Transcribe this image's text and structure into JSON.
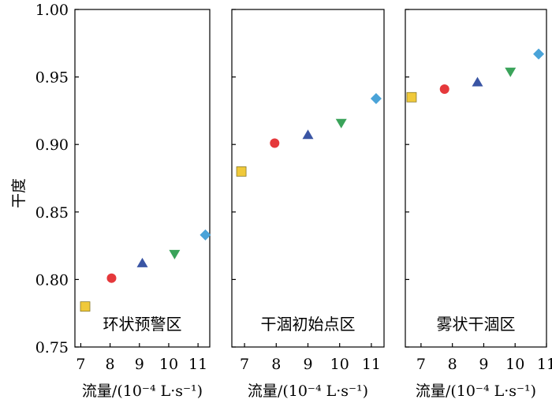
{
  "chart_data": {
    "type": "scatter",
    "ylabel": "干度",
    "ylim": [
      0.75,
      1.0
    ],
    "yticks": [
      "0.75",
      "0.80",
      "0.85",
      "0.90",
      "0.95",
      "1.00"
    ],
    "marker_colors": [
      "#f0c93a",
      "#e5383b",
      "#3a55a4",
      "#3aa35a",
      "#4aa3d8"
    ],
    "marker_shapes": [
      "square",
      "circle",
      "triangle-up",
      "triangle-down",
      "diamond"
    ],
    "panels": [
      {
        "label": "环状预警区",
        "xlabel": "流量/(10⁻⁴ L·s⁻¹)",
        "xlim": [
          6.8,
          11.4
        ],
        "xticks": [
          "7",
          "8",
          "9",
          "10",
          "11"
        ],
        "x": [
          7.15,
          8.05,
          9.1,
          10.2,
          11.25
        ],
        "y": [
          0.78,
          0.801,
          0.812,
          0.819,
          0.833
        ]
      },
      {
        "label": "干涸初始点区",
        "xlabel": "流量/(10⁻⁴ L·s⁻¹)",
        "xlim": [
          6.6,
          11.4
        ],
        "xticks": [
          "7",
          "8",
          "9",
          "10",
          "11"
        ],
        "x": [
          6.9,
          7.95,
          9.0,
          10.05,
          11.15
        ],
        "y": [
          0.88,
          0.901,
          0.907,
          0.916,
          0.934
        ]
      },
      {
        "label": "雾状干涸区",
        "xlabel": "流量/(10⁻⁴ L·s⁻¹)",
        "xlim": [
          6.5,
          11.0
        ],
        "xticks": [
          "7",
          "8",
          "9",
          "10",
          "11"
        ],
        "x": [
          6.7,
          7.75,
          8.8,
          9.85,
          10.75
        ],
        "y": [
          0.935,
          0.941,
          0.946,
          0.954,
          0.967
        ]
      }
    ]
  }
}
